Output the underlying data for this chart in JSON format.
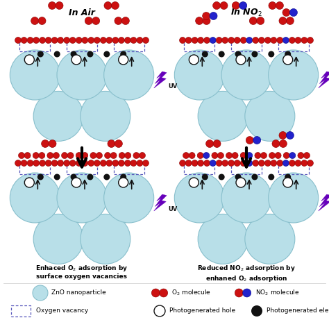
{
  "bg_color": "#ffffff",
  "zno_color": "#b8dfe8",
  "zno_edge_color": "#88bfcc",
  "o2_color": "#cc1111",
  "no2_red_color": "#cc1111",
  "no2_blue_color": "#2222cc",
  "black_dot_color": "#111111",
  "white_dot_color": "#ffffff",
  "uv_color": "#6600bb",
  "dashed_color": "#5555bb",
  "left_title": "In Air",
  "right_title": "In NO$_2$",
  "left_caption": "Enhaced O$_2$ adsorption by\nsurface oxygen vacancies",
  "right_caption": "Reduced NO$_2$ adsorption by\nenhaned O$_2$ adsorption"
}
